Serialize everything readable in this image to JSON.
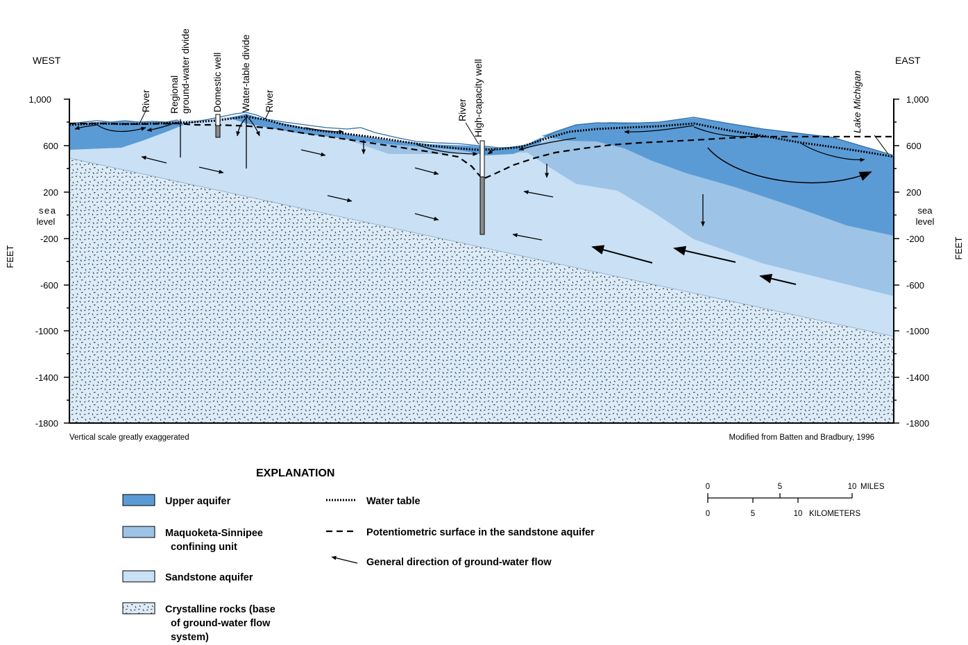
{
  "cross_section": {
    "west_label": "WEST",
    "east_label": "EAST",
    "y_axis_title": "FEET",
    "y_ticks": [
      "1,000",
      "600",
      "200",
      "sea level",
      "-200",
      "-600",
      "-1000",
      "-1400",
      "-1800"
    ],
    "feature_labels": {
      "river_1": "River",
      "regional_divide_1": "Regional",
      "regional_divide_2": "ground-water divide",
      "domestic_well": "Domestic well",
      "water_table_divide": "Water-table divide",
      "river_2": "River",
      "river_3": "River",
      "high_capacity_well": "High-capacity well",
      "lake_michigan": "Lake Michigan"
    },
    "footnote_left": "Vertical scale greatly exaggerated",
    "footnote_right": "Modified from Batten and Bradbury, 1996"
  },
  "explanation": {
    "title": "EXPLANATION",
    "units": [
      {
        "name": "upper-aquifer",
        "lines": [
          "Upper aquifer"
        ],
        "color": "#5b9bd5"
      },
      {
        "name": "maquoketa-sinnipee",
        "lines": [
          "Maquoketa-Sinnipee",
          "confining unit"
        ],
        "color": "#9dc3e6"
      },
      {
        "name": "sandstone-aquifer",
        "lines": [
          "Sandstone aquifer"
        ],
        "color": "#c9e0f5"
      },
      {
        "name": "crystalline-rocks",
        "lines": [
          "Crystalline rocks (base",
          "of ground-water flow",
          "system)"
        ],
        "color": "#dcebf8"
      }
    ],
    "lines": [
      {
        "name": "water-table",
        "label": "Water table"
      },
      {
        "name": "potentiometric-surface",
        "label": "Potentiometric surface in the sandstone aquifer"
      },
      {
        "name": "flow-direction",
        "label": "General direction of ground-water flow"
      }
    ]
  },
  "scale_bar": {
    "miles_ticks": [
      "0",
      "5",
      "10"
    ],
    "miles_unit": "MILES",
    "km_ticks": [
      "0",
      "5",
      "10"
    ],
    "km_unit": "KILOMETERS"
  }
}
